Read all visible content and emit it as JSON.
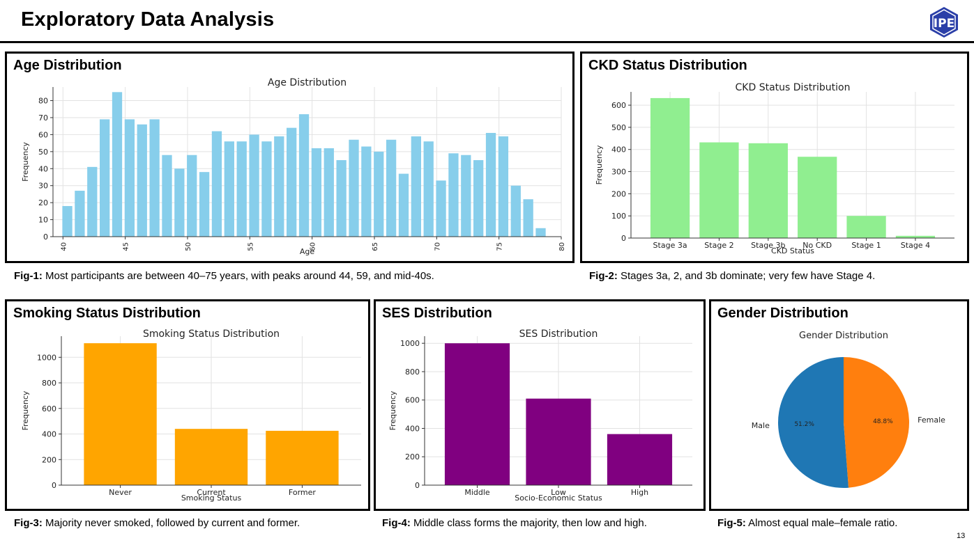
{
  "header": {
    "title": "Exploratory Data Analysis",
    "logo_text": "IPE"
  },
  "page_number": "13",
  "panels": {
    "age": {
      "heading": "Age Distribution",
      "caption_label": "Fig-1:",
      "caption_text": " Most participants are between 40–75 years, with peaks around 44, 59, and mid-40s."
    },
    "ckd": {
      "heading": "CKD Status Distribution",
      "caption_label": "Fig-2:",
      "caption_text": " Stages 3a, 2, and 3b dominate; very few have Stage 4."
    },
    "smoking": {
      "heading": "Smoking Status Distribution",
      "caption_label": "Fig-3:",
      "caption_text": " Majority never smoked, followed by current and former."
    },
    "ses": {
      "heading": "SES Distribution",
      "caption_label": "Fig-4:",
      "caption_text": " Middle class forms the majority, then low and high."
    },
    "gender": {
      "heading": "Gender Distribution",
      "caption_label": "Fig-5:",
      "caption_text": " Almost equal male–female ratio."
    }
  },
  "chart_data": [
    {
      "id": "age",
      "type": "bar",
      "title": "Age Distribution",
      "xlabel": "Age",
      "ylabel": "Frequency",
      "xlim": [
        39.2,
        80
      ],
      "ylim": [
        0,
        88
      ],
      "xticks": [
        40,
        45,
        50,
        55,
        60,
        65,
        70,
        75,
        80
      ],
      "yticks": [
        0,
        10,
        20,
        30,
        40,
        50,
        60,
        70,
        80
      ],
      "bins_start": [
        40,
        41,
        42,
        43,
        44,
        45,
        46,
        47,
        48,
        49,
        50,
        51,
        52,
        53,
        54,
        55,
        56,
        57,
        58,
        59,
        60,
        61,
        62,
        63,
        64,
        65,
        66,
        67,
        68,
        69,
        70,
        71,
        72,
        73,
        74,
        75,
        76,
        77,
        78
      ],
      "values": [
        18,
        27,
        41,
        69,
        85,
        69,
        66,
        69,
        48,
        40,
        48,
        38,
        62,
        56,
        56,
        60,
        56,
        59,
        64,
        72,
        52,
        52,
        45,
        57,
        53,
        50,
        57,
        37,
        59,
        56,
        33,
        49,
        48,
        45,
        61,
        59,
        30,
        22,
        5
      ],
      "color": "#87CEEB",
      "grid": true
    },
    {
      "id": "ckd",
      "type": "bar",
      "title": "CKD Status Distribution",
      "xlabel": "CKD Status",
      "ylabel": "Frequency",
      "categories": [
        "Stage 3a",
        "Stage 2",
        "Stage 3b",
        "No CKD",
        "Stage 1",
        "Stage 4"
      ],
      "values": [
        632,
        432,
        428,
        367,
        100,
        10
      ],
      "ylim": [
        0,
        660
      ],
      "yticks": [
        0,
        100,
        200,
        300,
        400,
        500,
        600
      ],
      "color": "#90EE90",
      "grid": true
    },
    {
      "id": "smoking",
      "type": "bar",
      "title": "Smoking Status Distribution",
      "xlabel": "Smoking Status",
      "ylabel": "Frequency",
      "categories": [
        "Never",
        "Current",
        "Former"
      ],
      "values": [
        1110,
        440,
        425
      ],
      "ylim": [
        0,
        1165
      ],
      "yticks": [
        0,
        200,
        400,
        600,
        800,
        1000
      ],
      "color": "#FFA500",
      "grid": true
    },
    {
      "id": "ses",
      "type": "bar",
      "title": "SES Distribution",
      "xlabel": "Socio-Economic Status",
      "ylabel": "Frequency",
      "categories": [
        "Middle",
        "Low",
        "High"
      ],
      "values": [
        1000,
        610,
        360
      ],
      "ylim": [
        0,
        1050
      ],
      "yticks": [
        0,
        200,
        400,
        600,
        800,
        1000
      ],
      "color": "#800080",
      "grid": true
    },
    {
      "id": "gender",
      "type": "pie",
      "title": "Gender Distribution",
      "labels": [
        "Male",
        "Female"
      ],
      "values": [
        51.2,
        48.8
      ],
      "pct_labels": [
        "51.2%",
        "48.8%"
      ],
      "colors": [
        "#1F77B4",
        "#FF7F0E"
      ]
    }
  ]
}
